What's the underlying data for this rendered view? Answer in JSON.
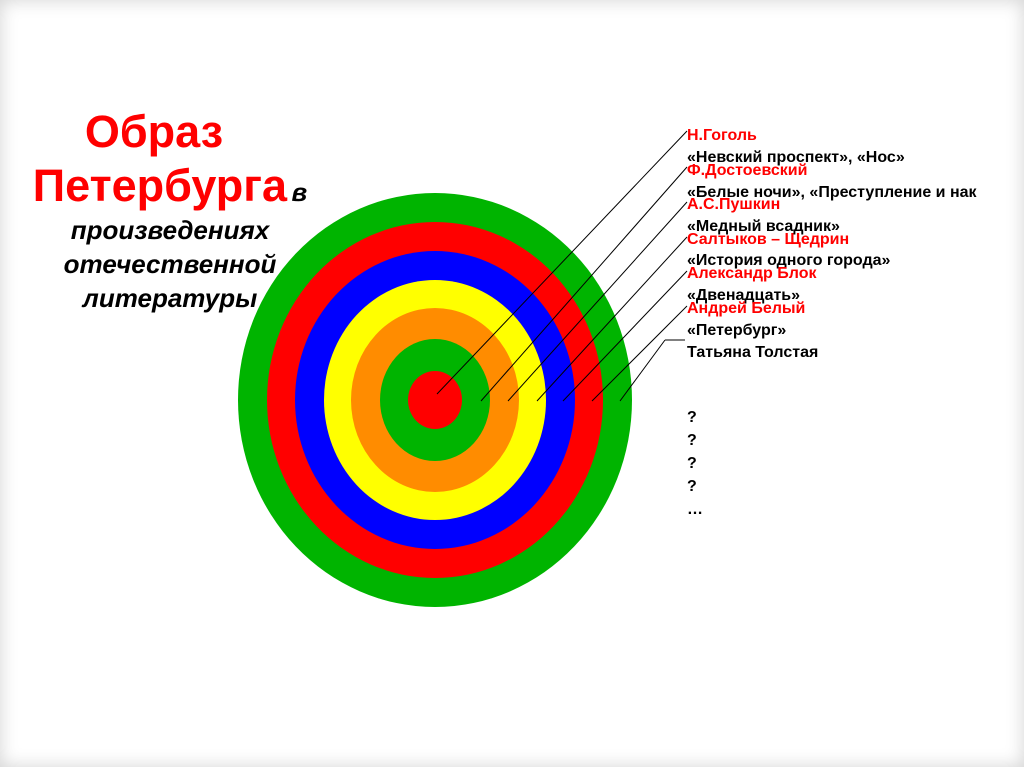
{
  "title": {
    "line1": "Образ",
    "line2": "Петербурга",
    "line2_suffix": "в",
    "line3": "произведениях",
    "line4": "отечественной",
    "line5": "литературы"
  },
  "rings": [
    {
      "color": "#00b400"
    },
    {
      "color": "#ff0000"
    },
    {
      "color": "#0000ff"
    },
    {
      "color": "#ffff00"
    },
    {
      "color": "#ff8c00"
    },
    {
      "color": "#00b400"
    },
    {
      "color": "#ff0000"
    }
  ],
  "entries": [
    {
      "author": "Н.Гоголь",
      "work": "«Невский проспект», «Нос»"
    },
    {
      "author": "Ф.Достоевский",
      "work": "«Белые ночи», «Преступление и нак"
    },
    {
      "author": "А.С.Пушкин",
      "work": "«Медный всадник»"
    },
    {
      "author": "Салтыков – Щедрин",
      "work": "«История одного города»"
    },
    {
      "author": "Александр Блок",
      "work": "«Двенадцать»"
    },
    {
      "author": "Андрей Белый",
      "work": "«Петербург»"
    },
    {
      "author": "",
      "work": "Татьяна Толстая"
    }
  ],
  "questions": [
    "?",
    "?",
    "?",
    "?",
    "…"
  ]
}
